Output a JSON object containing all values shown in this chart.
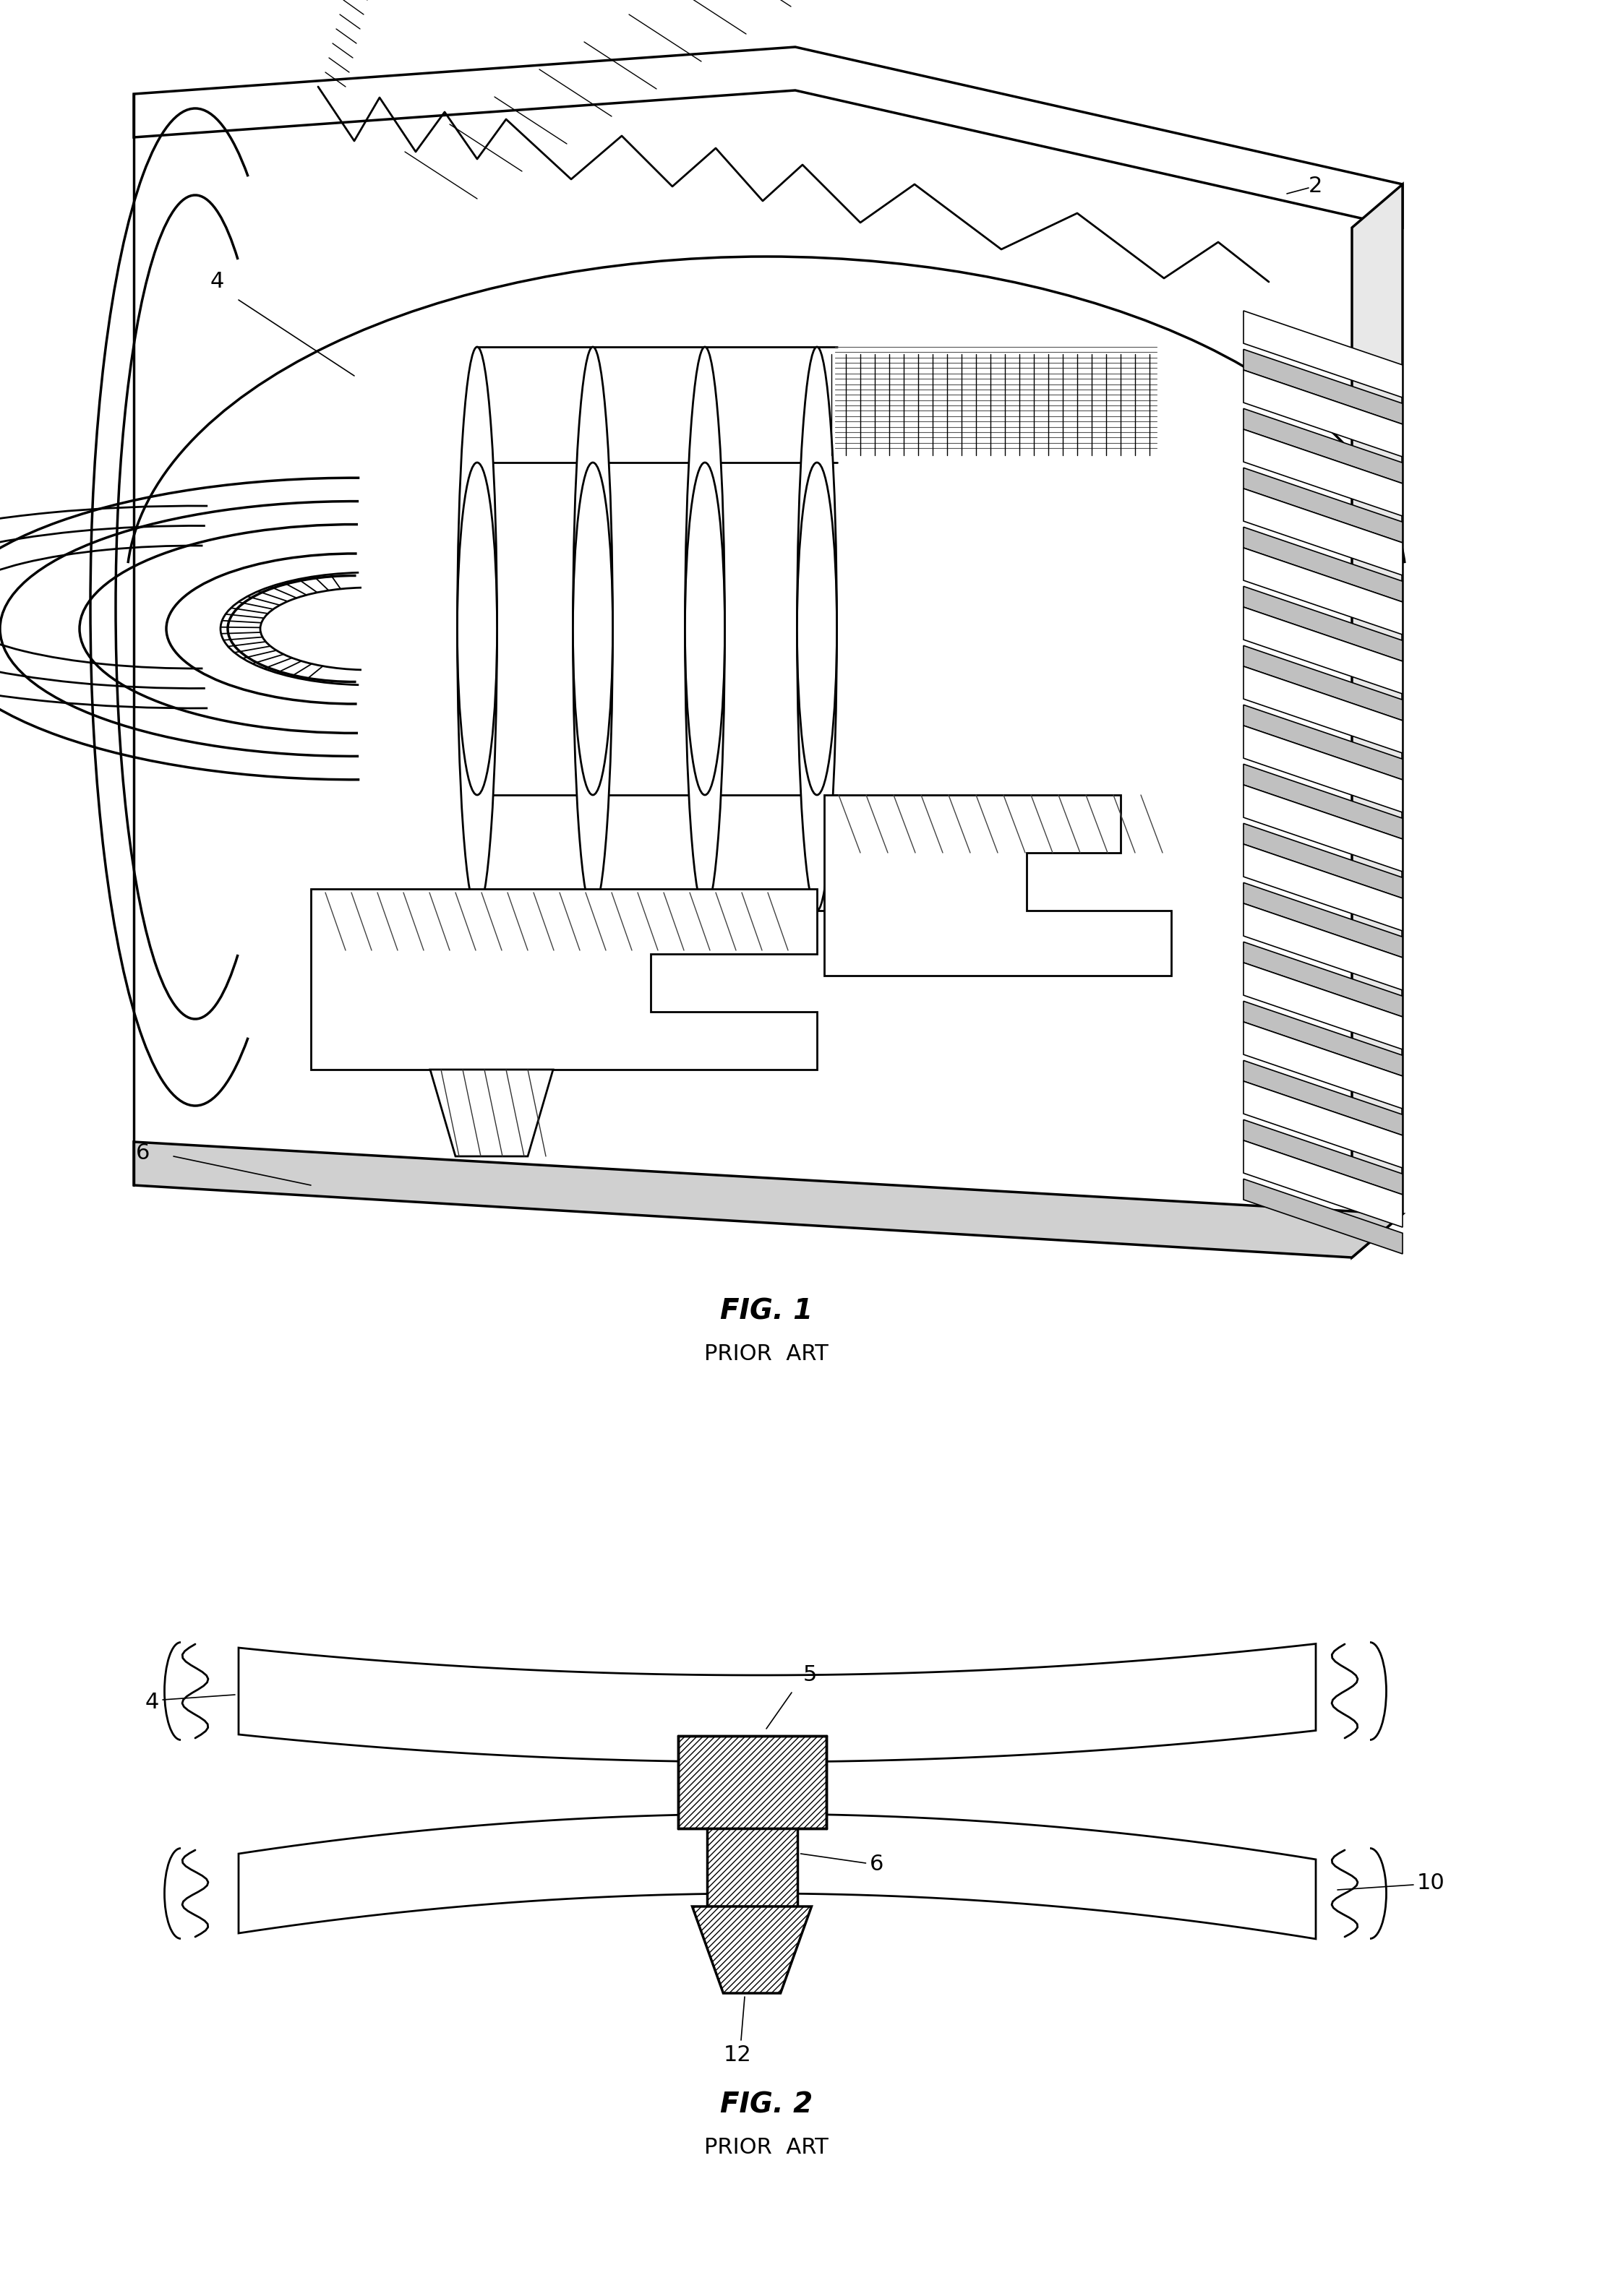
{
  "fig1_label": "FIG. 1",
  "fig1_sublabel": "PRIOR  ART",
  "fig2_label": "FIG. 2",
  "fig2_sublabel": "PRIOR  ART",
  "background_color": "#ffffff",
  "line_color": "#000000",
  "label_2": "2",
  "label_4": "4",
  "label_6": "6",
  "label_5": "5",
  "label_10": "10",
  "label_12": "12",
  "fig_label_fontsize": 28,
  "fig_sublabel_fontsize": 22,
  "ref_label_fontsize": 22
}
